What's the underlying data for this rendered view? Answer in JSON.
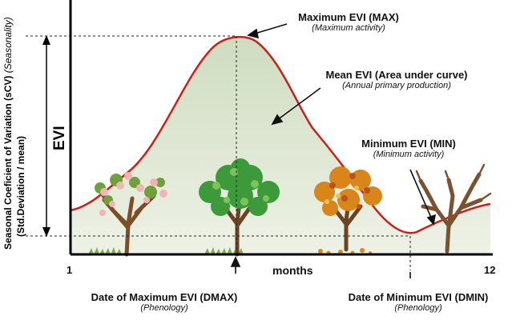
{
  "y_axis": {
    "symbol": "EVI",
    "line1": "Seasonal Coeficient of Variation (sCV)",
    "line1_note": "(Seasonality)",
    "line2": "(Std.Deviation / mean)"
  },
  "x_axis": {
    "start": "1",
    "end": "12",
    "label": "months"
  },
  "annotations": {
    "max_title": "Maximum EVI (MAX)",
    "max_sub": "(Maximum activity)",
    "mean_title": "Mean EVI (Area under curve)",
    "mean_sub": "(Annual primary production)",
    "min_title": "Minimum EVI (MIN)",
    "min_sub": "(Minimum activity)",
    "dmax_title": "Date of Maximum EVI (DMAX)",
    "dmax_sub": "(Phenology)",
    "dmin_title": "Date of Minimum EVI (DMIN)",
    "dmin_sub": "(Phenology)"
  },
  "colors": {
    "curve": "#cc1f1a",
    "fill": "#dfe7d3",
    "axis": "#000000",
    "dash": "#222222"
  },
  "trees": [
    "flowering-spring-tree",
    "green-summer-tree",
    "orange-autumn-tree",
    "bare-winter-tree"
  ]
}
